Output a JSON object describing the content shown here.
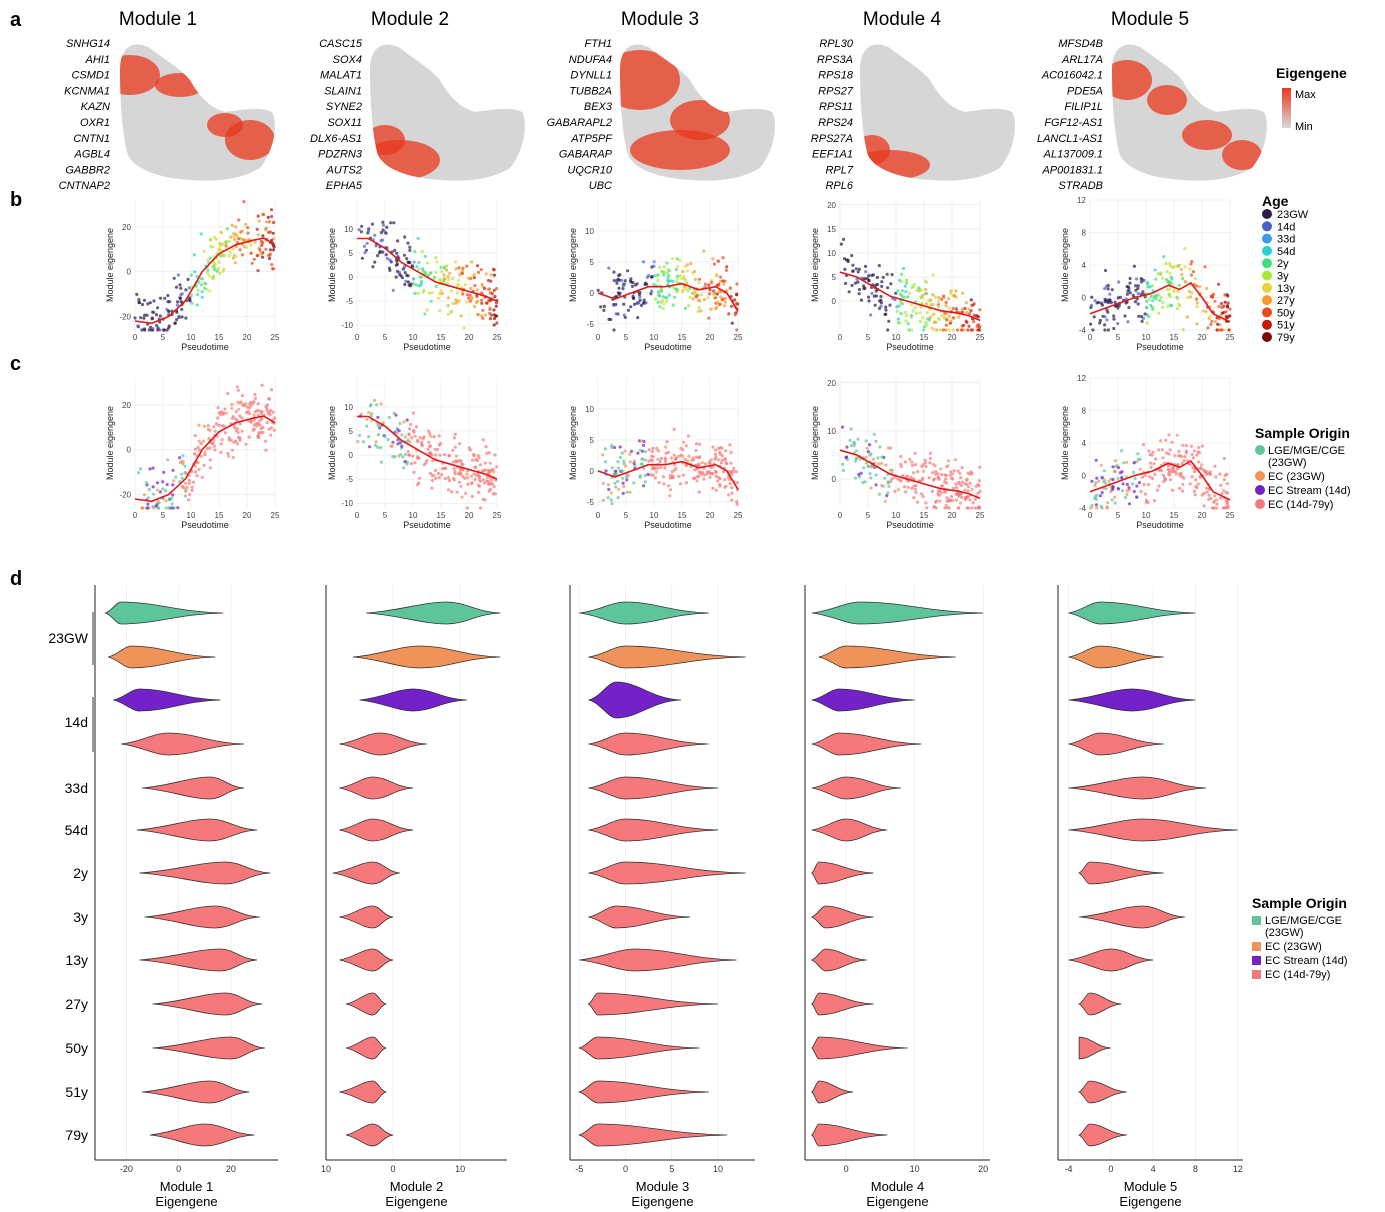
{
  "panel_letters": [
    "a",
    "b",
    "c",
    "d"
  ],
  "modules": [
    {
      "title": "Module 1",
      "genes": [
        "SNHG14",
        "AHI1",
        "CSMD1",
        "KCNMA1",
        "KAZN",
        "OXR1",
        "CNTN1",
        "AGBL4",
        "GABBR2",
        "CNTNAP2"
      ]
    },
    {
      "title": "Module 2",
      "genes": [
        "CASC15",
        "SOX4",
        "MALAT1",
        "SLAIN1",
        "SYNE2",
        "SOX11",
        "DLX6-AS1",
        "PDZRN3",
        "AUTS2",
        "EPHA5"
      ]
    },
    {
      "title": "Module 3",
      "genes": [
        "FTH1",
        "NDUFA4",
        "DYNLL1",
        "TUBB2A",
        "BEX3",
        "GABARAPL2",
        "ATP5PF",
        "GABARAP",
        "UQCR10",
        "UBC"
      ]
    },
    {
      "title": "Module 4",
      "genes": [
        "RPL30",
        "RPS3A",
        "RPS18",
        "RPS27",
        "RPS11",
        "RPS24",
        "RPS27A",
        "EEF1A1",
        "RPL7",
        "RPL6"
      ]
    },
    {
      "title": "Module 5",
      "genes": [
        "MFSD4B",
        "ARL17A",
        "AC016042.1",
        "PDE5A",
        "FILIP1L",
        "FGF12-AS1",
        "LANCL1-AS1",
        "AL137009.1",
        "AP001831.1",
        "STRADB"
      ]
    }
  ],
  "legends": {
    "eigengene": {
      "title": "Eigengene",
      "max": "Max",
      "min": "Min",
      "colors": [
        "#e8381c",
        "#d9d9d9"
      ]
    },
    "age": {
      "title": "Age",
      "items": [
        {
          "label": "23GW",
          "color": "#2b1a4a"
        },
        {
          "label": "14d",
          "color": "#4a5fcf"
        },
        {
          "label": "33d",
          "color": "#3a9be6"
        },
        {
          "label": "54d",
          "color": "#2ad0d0"
        },
        {
          "label": "2y",
          "color": "#3ee07a"
        },
        {
          "label": "3y",
          "color": "#a8e83a"
        },
        {
          "label": "13y",
          "color": "#e8d23a"
        },
        {
          "label": "27y",
          "color": "#f59a2a"
        },
        {
          "label": "50y",
          "color": "#e84a1a"
        },
        {
          "label": "51y",
          "color": "#c41a0a"
        },
        {
          "label": "79y",
          "color": "#7a0a0a"
        }
      ]
    },
    "origin_c": {
      "title": "Sample Origin",
      "items": [
        {
          "label": "LGE/MGE/CGE",
          "label2": "(23GW)",
          "color": "#5ec49a"
        },
        {
          "label": "EC (23GW)",
          "label2": "",
          "color": "#f0935a"
        },
        {
          "label": "EC Stream (14d)",
          "label2": "",
          "color": "#7222c8"
        },
        {
          "label": "EC (14d-79y)",
          "label2": "",
          "color": "#f5787a"
        }
      ]
    },
    "origin_d": {
      "title": "Sample Origin",
      "items": [
        {
          "label": "LGE/MGE/CGE",
          "label2": "(23GW)",
          "color": "#5ec49a"
        },
        {
          "label": "EC (23GW)",
          "label2": "",
          "color": "#f0935a"
        },
        {
          "label": "EC Stream (14d)",
          "label2": "",
          "color": "#7222c8"
        },
        {
          "label": "EC (14d-79y)",
          "label2": "",
          "color": "#f5787a"
        }
      ]
    }
  },
  "scatter_axes": {
    "x_label": "Pseudotime",
    "y_label": "Module eigengene",
    "x_ticks": [
      "0",
      "5",
      "10",
      "15",
      "20",
      "25"
    ]
  },
  "chart_data": [
    {
      "type": "scatter",
      "panel": "b",
      "module": "Module 1",
      "xlabel": "Pseudotime",
      "ylabel": "Module eigengene",
      "xlim": [
        0,
        25
      ],
      "ylim": [
        -26,
        32
      ],
      "y_ticks": [
        -20,
        0,
        20
      ],
      "x_ticks": [
        0,
        5,
        10,
        15,
        20,
        25
      ],
      "trend": [
        [
          0,
          -22
        ],
        [
          3,
          -23
        ],
        [
          6,
          -20
        ],
        [
          9,
          -13
        ],
        [
          12,
          0
        ],
        [
          15,
          8
        ],
        [
          18,
          12
        ],
        [
          21,
          14
        ],
        [
          23,
          15
        ],
        [
          25,
          12
        ]
      ]
    },
    {
      "type": "scatter",
      "panel": "b",
      "module": "Module 2",
      "xlabel": "Pseudotime",
      "ylabel": "Module eigengene",
      "xlim": [
        0,
        25
      ],
      "ylim": [
        -11,
        16
      ],
      "y_ticks": [
        -10,
        -5,
        0,
        5,
        10
      ],
      "x_ticks": [
        0,
        5,
        10,
        15,
        20,
        25
      ],
      "trend": [
        [
          0,
          8
        ],
        [
          2,
          8
        ],
        [
          5,
          6
        ],
        [
          8,
          3
        ],
        [
          11,
          1
        ],
        [
          14,
          -1
        ],
        [
          17,
          -2
        ],
        [
          20,
          -3
        ],
        [
          23,
          -4
        ],
        [
          25,
          -5
        ]
      ]
    },
    {
      "type": "scatter",
      "panel": "b",
      "module": "Module 3",
      "xlabel": "Pseudotime",
      "ylabel": "Module eigengene",
      "xlim": [
        0,
        25
      ],
      "ylim": [
        -6,
        15
      ],
      "y_ticks": [
        -5,
        0,
        5,
        10
      ],
      "x_ticks": [
        0,
        5,
        10,
        15,
        20,
        25
      ],
      "trend": [
        [
          0,
          0
        ],
        [
          3,
          -1
        ],
        [
          6,
          0
        ],
        [
          9,
          1
        ],
        [
          12,
          1
        ],
        [
          15,
          1.5
        ],
        [
          18,
          0.5
        ],
        [
          21,
          1
        ],
        [
          23,
          0
        ],
        [
          25,
          -3
        ]
      ]
    },
    {
      "type": "scatter",
      "panel": "b",
      "module": "Module 4",
      "xlabel": "Pseudotime",
      "ylabel": "Module eigengene",
      "xlim": [
        0,
        25
      ],
      "ylim": [
        -6,
        21
      ],
      "y_ticks": [
        0,
        5,
        10,
        15,
        20
      ],
      "x_ticks": [
        0,
        5,
        10,
        15,
        20,
        25
      ],
      "trend": [
        [
          0,
          6
        ],
        [
          3,
          5
        ],
        [
          6,
          3
        ],
        [
          9,
          1
        ],
        [
          12,
          0
        ],
        [
          15,
          -1
        ],
        [
          18,
          -2
        ],
        [
          21,
          -2.5
        ],
        [
          23,
          -3
        ],
        [
          25,
          -4
        ]
      ]
    },
    {
      "type": "scatter",
      "panel": "b",
      "module": "Module 5",
      "xlabel": "Pseudotime",
      "ylabel": "Module eigengene",
      "xlim": [
        0,
        25
      ],
      "ylim": [
        -4,
        12
      ],
      "y_ticks": [
        -4,
        0,
        4,
        8,
        12
      ],
      "x_ticks": [
        0,
        5,
        10,
        15,
        20,
        25
      ],
      "trend": [
        [
          0,
          -2
        ],
        [
          4,
          -1
        ],
        [
          8,
          0
        ],
        [
          11,
          0.5
        ],
        [
          14,
          1.5
        ],
        [
          16,
          1
        ],
        [
          18,
          1.8
        ],
        [
          20,
          0
        ],
        [
          22,
          -2
        ],
        [
          25,
          -3
        ]
      ]
    },
    {
      "type": "scatter",
      "panel": "c",
      "module": "Module 1",
      "xlabel": "Pseudotime",
      "ylabel": "Module eigengene",
      "xlim": [
        0,
        25
      ],
      "ylim": [
        -26,
        32
      ],
      "y_ticks": [
        -20,
        0,
        20
      ],
      "x_ticks": [
        0,
        5,
        10,
        15,
        20,
        25
      ],
      "trend": [
        [
          0,
          -22
        ],
        [
          3,
          -23
        ],
        [
          6,
          -20
        ],
        [
          9,
          -13
        ],
        [
          12,
          0
        ],
        [
          15,
          8
        ],
        [
          18,
          12
        ],
        [
          21,
          14
        ],
        [
          23,
          15
        ],
        [
          25,
          12
        ]
      ]
    },
    {
      "type": "scatter",
      "panel": "c",
      "module": "Module 2",
      "xlabel": "Pseudotime",
      "ylabel": "Module eigengene",
      "xlim": [
        0,
        25
      ],
      "ylim": [
        -11,
        16
      ],
      "y_ticks": [
        -10,
        -5,
        0,
        5,
        10
      ],
      "x_ticks": [
        0,
        5,
        10,
        15,
        20,
        25
      ],
      "trend": [
        [
          0,
          8
        ],
        [
          2,
          8
        ],
        [
          5,
          6
        ],
        [
          8,
          3
        ],
        [
          11,
          1
        ],
        [
          14,
          -1
        ],
        [
          17,
          -2
        ],
        [
          20,
          -3
        ],
        [
          23,
          -4
        ],
        [
          25,
          -5
        ]
      ]
    },
    {
      "type": "scatter",
      "panel": "c",
      "module": "Module 3",
      "xlabel": "Pseudotime",
      "ylabel": "Module eigengene",
      "xlim": [
        0,
        25
      ],
      "ylim": [
        -6,
        15
      ],
      "y_ticks": [
        -5,
        0,
        5,
        10
      ],
      "x_ticks": [
        0,
        5,
        10,
        15,
        20,
        25
      ],
      "trend": [
        [
          0,
          0
        ],
        [
          3,
          -1
        ],
        [
          6,
          0
        ],
        [
          9,
          1
        ],
        [
          12,
          1
        ],
        [
          15,
          1.5
        ],
        [
          18,
          0.5
        ],
        [
          21,
          1
        ],
        [
          23,
          0
        ],
        [
          25,
          -3
        ]
      ]
    },
    {
      "type": "scatter",
      "panel": "c",
      "module": "Module 4",
      "xlabel": "Pseudotime",
      "ylabel": "Module eigengene",
      "xlim": [
        0,
        25
      ],
      "ylim": [
        -6,
        21
      ],
      "y_ticks": [
        0,
        10,
        20
      ],
      "x_ticks": [
        0,
        5,
        10,
        15,
        20,
        25
      ],
      "trend": [
        [
          0,
          6
        ],
        [
          3,
          5
        ],
        [
          6,
          3
        ],
        [
          9,
          1
        ],
        [
          12,
          0
        ],
        [
          15,
          -1
        ],
        [
          18,
          -2
        ],
        [
          21,
          -2.5
        ],
        [
          23,
          -3
        ],
        [
          25,
          -4
        ]
      ]
    },
    {
      "type": "scatter",
      "panel": "c",
      "module": "Module 5",
      "xlabel": "Pseudotime",
      "ylabel": "Module eigengene",
      "xlim": [
        0,
        25
      ],
      "ylim": [
        -4,
        12
      ],
      "y_ticks": [
        -4,
        0,
        4,
        8,
        12
      ],
      "x_ticks": [
        0,
        5,
        10,
        15,
        20,
        25
      ],
      "trend": [
        [
          0,
          -2
        ],
        [
          4,
          -1
        ],
        [
          8,
          0
        ],
        [
          11,
          0.5
        ],
        [
          14,
          1.5
        ],
        [
          16,
          1
        ],
        [
          18,
          1.8
        ],
        [
          20,
          0
        ],
        [
          22,
          -2
        ],
        [
          25,
          -3
        ]
      ]
    }
  ],
  "violins": {
    "age_labels": [
      "23GW",
      "14d",
      "33d",
      "54d",
      "2y",
      "3y",
      "13y",
      "27y",
      "50y",
      "51y",
      "79y"
    ],
    "row_colors": [
      "#5ec49a",
      "#f0935a",
      "#7222c8",
      "#f5787a",
      "#f5787a",
      "#f5787a",
      "#f5787a",
      "#f5787a",
      "#f5787a",
      "#f5787a",
      "#f5787a",
      "#f5787a",
      "#f5787a"
    ],
    "modules": [
      {
        "xlabel": "Module 1",
        "xlabel2": "Eigengene",
        "xlim": [
          -32,
          38
        ],
        "ticks": [
          -20,
          0,
          20
        ],
        "rows": [
          [
            -28,
            -22,
            17
          ],
          [
            -27,
            -18,
            14
          ],
          [
            -25,
            -15,
            16
          ],
          [
            -22,
            -4,
            25
          ],
          [
            -14,
            12,
            25
          ],
          [
            -16,
            12,
            30
          ],
          [
            -15,
            18,
            35
          ],
          [
            -13,
            14,
            31
          ],
          [
            -15,
            16,
            30
          ],
          [
            -10,
            18,
            32
          ],
          [
            -10,
            20,
            33
          ],
          [
            -14,
            12,
            27
          ],
          [
            -11,
            10,
            29
          ]
        ]
      },
      {
        "xlabel": "Module 2",
        "xlabel2": "Eigengene",
        "xlim": [
          -10,
          17
        ],
        "ticks": [
          -10,
          0,
          10
        ],
        "rows": [
          [
            -4,
            8,
            16
          ],
          [
            -6,
            4,
            16
          ],
          [
            -5,
            3,
            11
          ],
          [
            -8,
            -2,
            5
          ],
          [
            -8,
            -3,
            3
          ],
          [
            -8,
            -3,
            3
          ],
          [
            -9,
            -3,
            1
          ],
          [
            -8,
            -3,
            0
          ],
          [
            -8,
            -3,
            0
          ],
          [
            -7,
            -3,
            -1
          ],
          [
            -7,
            -3,
            -1
          ],
          [
            -8,
            -3,
            -1
          ],
          [
            -7,
            -3,
            0
          ]
        ]
      },
      {
        "xlabel": "Module 3",
        "xlabel2": "Eigengene",
        "xlim": [
          -6,
          14
        ],
        "ticks": [
          -5,
          0,
          5,
          10
        ],
        "rows": [
          [
            -5,
            0,
            9
          ],
          [
            -4,
            0,
            13
          ],
          [
            -4,
            -1,
            6
          ],
          [
            -4,
            0,
            9
          ],
          [
            -4,
            0,
            10
          ],
          [
            -4,
            0,
            10
          ],
          [
            -4,
            0,
            13
          ],
          [
            -4,
            -1,
            7
          ],
          [
            -5,
            1,
            12
          ],
          [
            -4,
            -3,
            10
          ],
          [
            -5,
            -3,
            8
          ],
          [
            -5,
            -3,
            9
          ],
          [
            -5,
            -3,
            11
          ]
        ]
      },
      {
        "xlabel": "Module 4",
        "xlabel2": "Eigengene",
        "xlim": [
          -6,
          21
        ],
        "ticks": [
          0,
          10,
          20
        ],
        "rows": [
          [
            -5,
            2,
            20
          ],
          [
            -4,
            0,
            16
          ],
          [
            -5,
            -1,
            10
          ],
          [
            -5,
            -1,
            11
          ],
          [
            -5,
            0,
            8
          ],
          [
            -5,
            0,
            6
          ],
          [
            -5,
            -4,
            4
          ],
          [
            -5,
            -3,
            4
          ],
          [
            -5,
            -3,
            3
          ],
          [
            -5,
            -4,
            4
          ],
          [
            -5,
            -4,
            9
          ],
          [
            -5,
            -4,
            1
          ],
          [
            -5,
            -4,
            6
          ]
        ]
      },
      {
        "xlabel": "Module 5",
        "xlabel2": "Eigengene",
        "xlim": [
          -5,
          12.5
        ],
        "ticks": [
          -4,
          0,
          4,
          8,
          12
        ],
        "rows": [
          [
            -4,
            -1,
            8
          ],
          [
            -4,
            -1,
            5
          ],
          [
            -4,
            2,
            8
          ],
          [
            -4,
            -1,
            5
          ],
          [
            -4,
            3,
            9
          ],
          [
            -4,
            3,
            12
          ],
          [
            -3,
            -2,
            5
          ],
          [
            -3,
            3,
            7
          ],
          [
            -4,
            0,
            4
          ],
          [
            -3,
            -2,
            1
          ],
          [
            -3,
            -3,
            0
          ],
          [
            -3,
            -2,
            1.5
          ],
          [
            -3,
            -2,
            1.5
          ]
        ]
      }
    ]
  }
}
